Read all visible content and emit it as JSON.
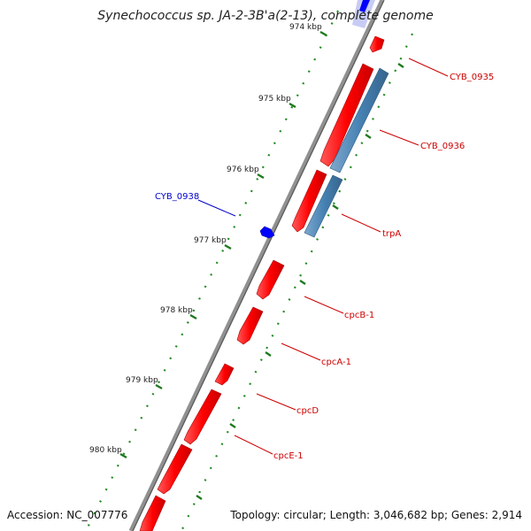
{
  "title": "Synechococcus sp. JA-2-3B'a(2-13), complete genome",
  "footer": {
    "accession": "Accession: NC_007776",
    "summary": "Topology: circular; Length: 3,046,682 bp; Genes: 2,914"
  },
  "ticks": [
    "974 kbp",
    "975 kbp",
    "976 kbp",
    "977 kbp",
    "978 kbp",
    "979 kbp",
    "980 kbp"
  ],
  "genes": [
    {
      "label": "CYB_0935",
      "color": "#cc0000"
    },
    {
      "label": "CYB_0936",
      "color": "#cc0000"
    },
    {
      "label": "trpA",
      "color": "#cc0000"
    },
    {
      "label": "CYB_0938",
      "color": "#0000cc"
    },
    {
      "label": "cpcB-1",
      "color": "#cc0000"
    },
    {
      "label": "cpcA-1",
      "color": "#cc0000"
    },
    {
      "label": "cpcD",
      "color": "#cc0000"
    },
    {
      "label": "cpcE-1",
      "color": "#cc0000"
    }
  ],
  "colors": {
    "forward_feature": "#ff0000",
    "reverse_feature": "#0000ff",
    "blue_track_feature": "#4682b4",
    "backbone": "#808080",
    "tick_marks": "#228b22"
  }
}
